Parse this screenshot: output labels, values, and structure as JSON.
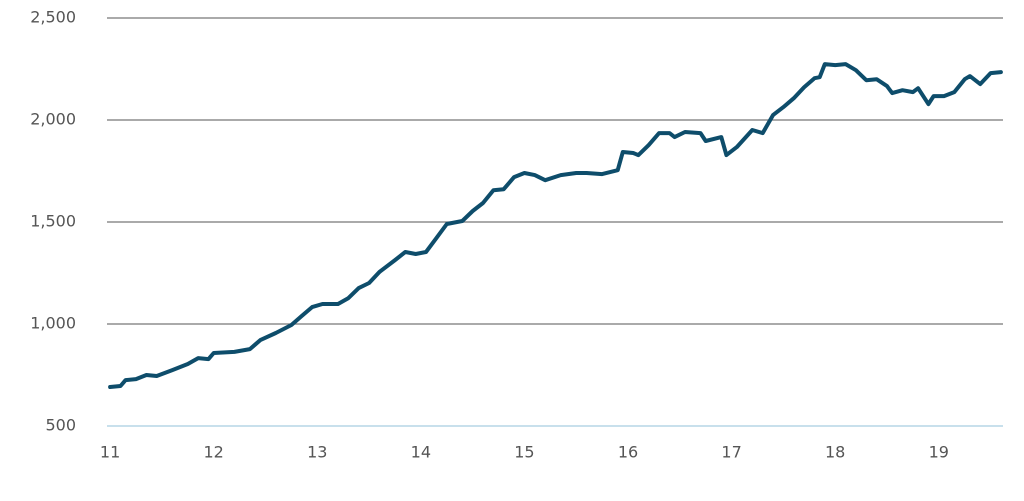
{
  "chart_data": {
    "type": "line",
    "x": [
      11.0,
      11.1,
      11.15,
      11.25,
      11.35,
      11.45,
      11.6,
      11.75,
      11.85,
      11.95,
      12.0,
      12.2,
      12.35,
      12.45,
      12.6,
      12.75,
      12.85,
      12.95,
      13.05,
      13.2,
      13.3,
      13.4,
      13.5,
      13.6,
      13.75,
      13.85,
      13.95,
      14.05,
      14.15,
      14.25,
      14.4,
      14.5,
      14.6,
      14.7,
      14.8,
      14.9,
      15.0,
      15.1,
      15.2,
      15.35,
      15.5,
      15.6,
      15.75,
      15.9,
      15.95,
      16.05,
      16.1,
      16.2,
      16.3,
      16.4,
      16.45,
      16.55,
      16.7,
      16.75,
      16.9,
      16.95,
      17.05,
      17.2,
      17.3,
      17.4,
      17.5,
      17.6,
      17.7,
      17.8,
      17.85,
      17.9,
      18.0,
      18.1,
      18.2,
      18.3,
      18.4,
      18.5,
      18.55,
      18.65,
      18.75,
      18.8,
      18.9,
      18.95,
      19.05,
      19.15,
      19.25,
      19.3,
      19.4,
      19.5,
      19.6
    ],
    "values": [
      691,
      696,
      725,
      730,
      750,
      745,
      774,
      804,
      833,
      828,
      858,
      863,
      877,
      921,
      956,
      995,
      1039,
      1083,
      1098,
      1098,
      1127,
      1176,
      1201,
      1255,
      1313,
      1353,
      1343,
      1353,
      1421,
      1490,
      1505,
      1554,
      1593,
      1656,
      1661,
      1720,
      1740,
      1730,
      1705,
      1730,
      1740,
      1740,
      1735,
      1754,
      1843,
      1838,
      1828,
      1877,
      1936,
      1936,
      1916,
      1941,
      1936,
      1897,
      1916,
      1828,
      1867,
      1951,
      1936,
      2024,
      2063,
      2107,
      2161,
      2205,
      2210,
      2274,
      2269,
      2274,
      2244,
      2195,
      2200,
      2166,
      2132,
      2146,
      2137,
      2156,
      2078,
      2117,
      2117,
      2137,
      2200,
      2215,
      2176,
      2230,
      2235
    ],
    "color": "#0e4d6b",
    "xlim": [
      10.97,
      19.62
    ],
    "xticks": [
      11,
      12,
      13,
      14,
      15,
      16,
      17,
      18,
      19
    ],
    "ylim": [
      500,
      2500
    ],
    "yticks": [
      500,
      {
        "value": 1000,
        "label": "1,000"
      },
      {
        "value": 1500,
        "label": "1,500"
      },
      {
        "value": 2000,
        "label": "2,000"
      },
      {
        "value": 2500,
        "label": "2,500"
      }
    ],
    "grid": true
  }
}
